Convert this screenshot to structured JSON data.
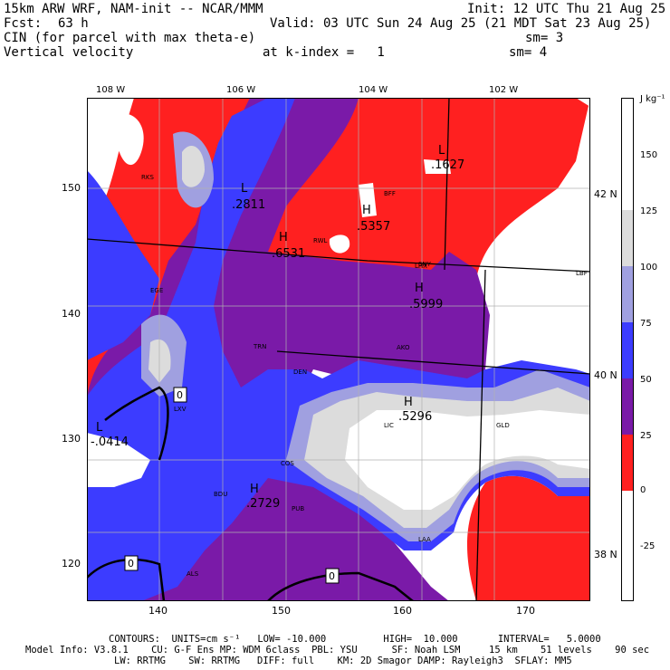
{
  "header": {
    "model_title": "15km ARW WRF, NAM-init -- NCAR/MMM",
    "init": "Init: 12 UTC Thu 21 Aug 25",
    "fcst_label": "Fcst:",
    "fcst_value": "63 h",
    "valid": "Valid: 03 UTC Sun 24 Aug 25 (21 MDT Sat 23 Aug 25)",
    "field1": "CIN (for parcel with max theta-e)",
    "field1_smooth": "sm= 3",
    "field2": "Vertical velocity",
    "field2_level": "at k-index =   1",
    "field2_smooth": "sm= 4"
  },
  "map": {
    "lon_labels": [
      "108 W",
      "106 W",
      "104 W",
      "102 W"
    ],
    "x_ticks": [
      "140",
      "150",
      "160",
      "170"
    ],
    "y_ticks": [
      "150",
      "140",
      "130",
      "120"
    ],
    "lat_labels": [
      "42 N",
      "40 N",
      "38 N"
    ],
    "extrema": [
      {
        "type": "L",
        "value": ".2811"
      },
      {
        "type": "H",
        "value": ".6531"
      },
      {
        "type": "L",
        "value": ".1627"
      },
      {
        "type": "H",
        "value": ".5357"
      },
      {
        "type": "H",
        "value": ".5999"
      },
      {
        "type": "H",
        "value": ".5296"
      },
      {
        "type": "L",
        "value": "-.0414"
      },
      {
        "type": "H",
        "value": ".2729"
      }
    ],
    "stations": [
      "RKS",
      "RWL",
      "BFF",
      "SNY",
      "LBF",
      "DEN",
      "AKO",
      "COS",
      "PUB",
      "LIC",
      "GLD",
      "LAA",
      "LHX",
      "ALS",
      "EGE",
      "TRN",
      "LXV",
      "BDU"
    ],
    "contour_labels": [
      "0",
      "0",
      "0"
    ]
  },
  "colorbar": {
    "units": "J kg⁻¹",
    "labels": [
      "150",
      "125",
      "100",
      "75",
      "50",
      "25",
      "0",
      "-25"
    ],
    "colors": [
      "#ffffff",
      "#dcdcdc",
      "#a0a0e0",
      "#3c3cff",
      "#7a1aa8",
      "#ff2020",
      "#ffffff"
    ]
  },
  "footer": {
    "contours": "CONTOURS:  UNITS=cm s⁻¹   LOW= -10.000          HIGH=  10.000       INTERVAL=   5.0000",
    "model_info_1": "Model Info: V3.8.1    CU: G-F Ens MP: WDM 6class  PBL: YSU      SF: Noah LSM     15 km    51 levels    90 sec",
    "model_info_2": "LW: RRTMG    SW: RRTMG   DIFF: full    KM: 2D Smagor DAMP: Rayleigh3  SFLAY: MM5"
  }
}
